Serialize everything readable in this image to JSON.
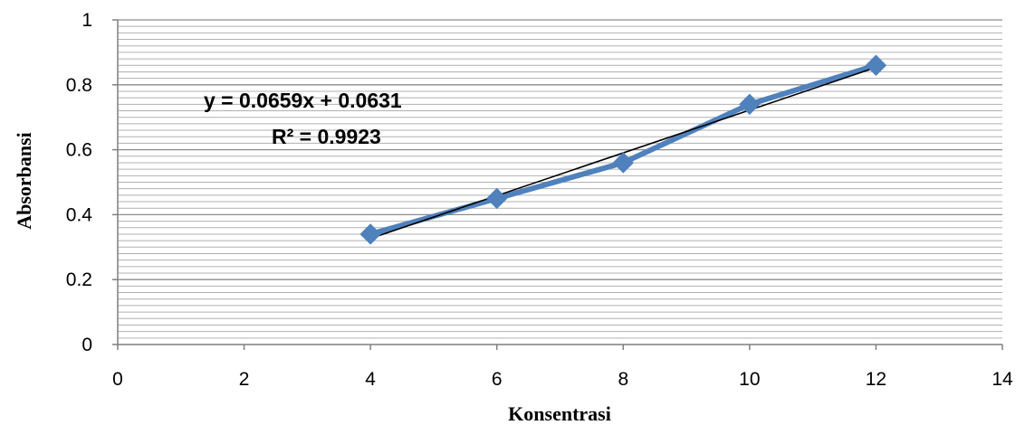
{
  "chart_data": {
    "type": "scatter",
    "xlabel": "Konsentrasi",
    "ylabel": "Absorbansi",
    "xlim": [
      0,
      14
    ],
    "ylim": [
      0,
      1
    ],
    "x_ticks": [
      "0",
      "2",
      "4",
      "6",
      "8",
      "10",
      "12",
      "14"
    ],
    "y_ticks": [
      "0",
      "0.2",
      "0.4",
      "0.6",
      "0.8",
      "1"
    ],
    "grid": true,
    "series": [
      {
        "x": [
          4,
          6,
          8,
          10,
          12
        ],
        "y": [
          0.34,
          0.45,
          0.56,
          0.74,
          0.86
        ],
        "color": "#4F81BD",
        "marker": "diamond",
        "connected": true
      }
    ],
    "trendline": {
      "type": "linear",
      "slope": 0.0659,
      "intercept": 0.0631,
      "x_range": [
        4,
        12
      ],
      "color": "#000000"
    },
    "annotations": {
      "equation": "y = 0.0659x + 0.0631",
      "r_squared": "R² = 0.9923"
    }
  }
}
